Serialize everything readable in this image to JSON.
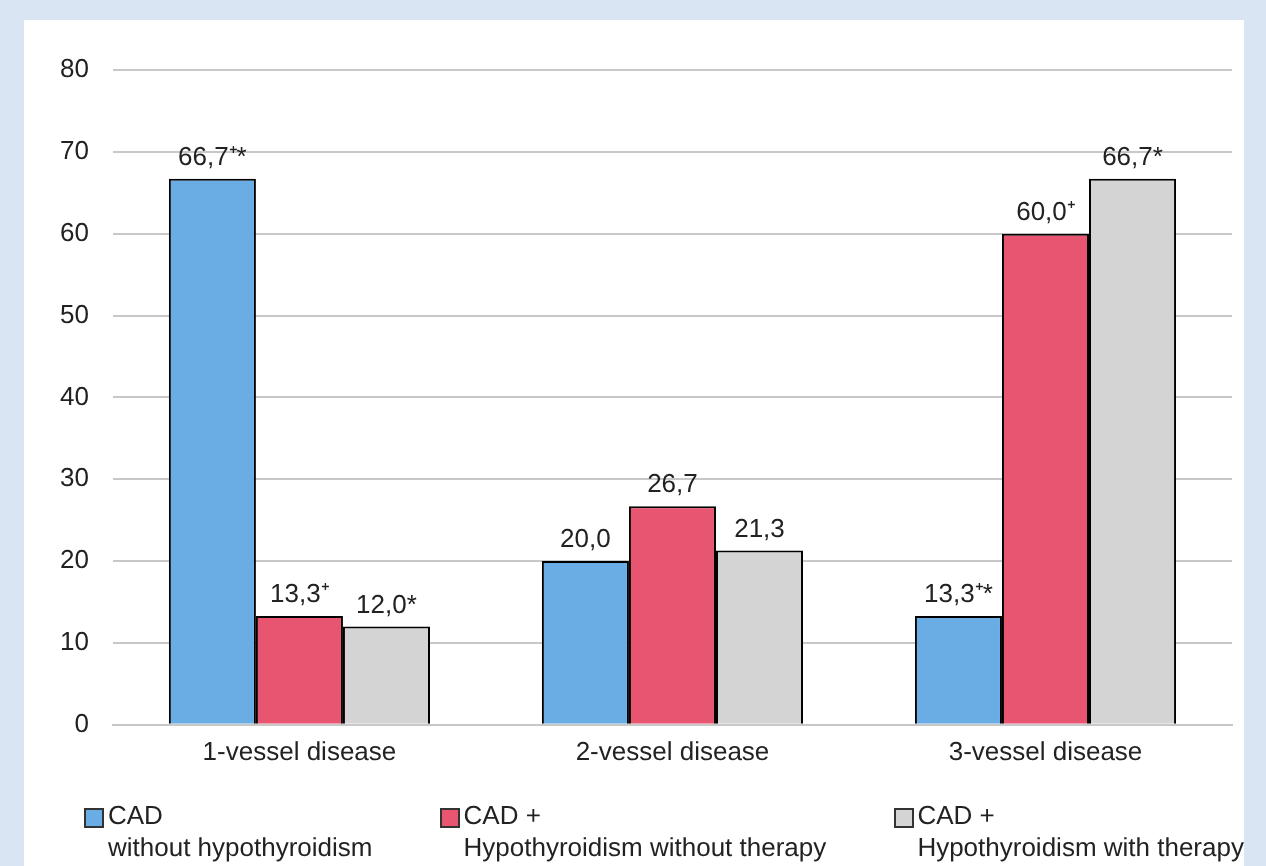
{
  "chart_data": {
    "type": "bar",
    "categories": [
      "1-vessel disease",
      "2-vessel disease",
      "3-vessel disease"
    ],
    "series": [
      {
        "name": "CAD\nwithout hypothyroidism",
        "color": "#6aade4",
        "values": [
          66.7,
          20.0,
          13.3
        ],
        "value_labels": [
          "66,7⁺*",
          "20,0",
          "13,3⁺*"
        ]
      },
      {
        "name": "CAD +\nHypothyroidism without therapy",
        "color": "#e85571",
        "values": [
          13.3,
          26.7,
          60.0
        ],
        "value_labels": [
          "13,3⁺",
          "26,7",
          "60,0⁺"
        ]
      },
      {
        "name": "CAD +\nHypothyroidism with therapy",
        "color": "#d4d4d4",
        "values": [
          12.0,
          21.3,
          66.7
        ],
        "value_labels": [
          "12,0*",
          "21,3",
          "66,7*"
        ]
      }
    ],
    "ylim": [
      0,
      80
    ],
    "yticks": [
      0,
      10,
      20,
      30,
      40,
      50,
      60,
      70,
      80
    ],
    "grid": "y",
    "legend": "bottom"
  }
}
